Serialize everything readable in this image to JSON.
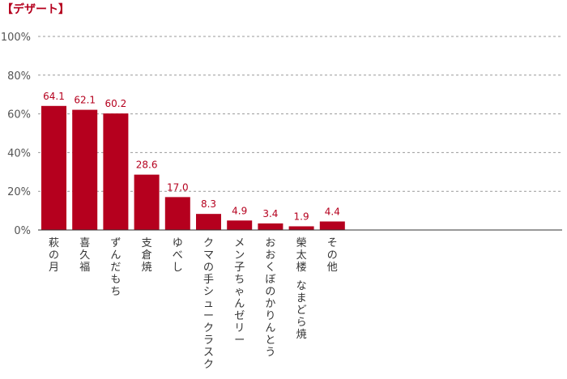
{
  "chart_data": {
    "type": "bar",
    "title": "【デザート】",
    "categories": [
      "萩の月",
      "喜久福",
      "ずんだもち",
      "支倉焼",
      "ゆべし",
      "クマの手シュークラスク",
      "メン子ちゃんゼリー",
      "おおくぼのかりんとう",
      "榮太楼 なまどら焼",
      "その他"
    ],
    "values": [
      64.1,
      62.1,
      60.2,
      28.6,
      17.0,
      8.3,
      4.9,
      3.4,
      1.9,
      4.4
    ],
    "value_labels": [
      "64.1",
      "62.1",
      "60.2",
      "28.6",
      "17.0",
      "8.3",
      "4.9",
      "3.4",
      "1.9",
      "4.4"
    ],
    "ylim": [
      0,
      100
    ],
    "yticks": [
      0,
      20,
      40,
      60,
      80,
      100
    ],
    "ytick_labels": [
      "0%",
      "20%",
      "40%",
      "60%",
      "80%",
      "100%"
    ],
    "grid": true,
    "bar_color": "#b5001e",
    "title_color": "#b5001e",
    "grid_color": "#999999"
  }
}
